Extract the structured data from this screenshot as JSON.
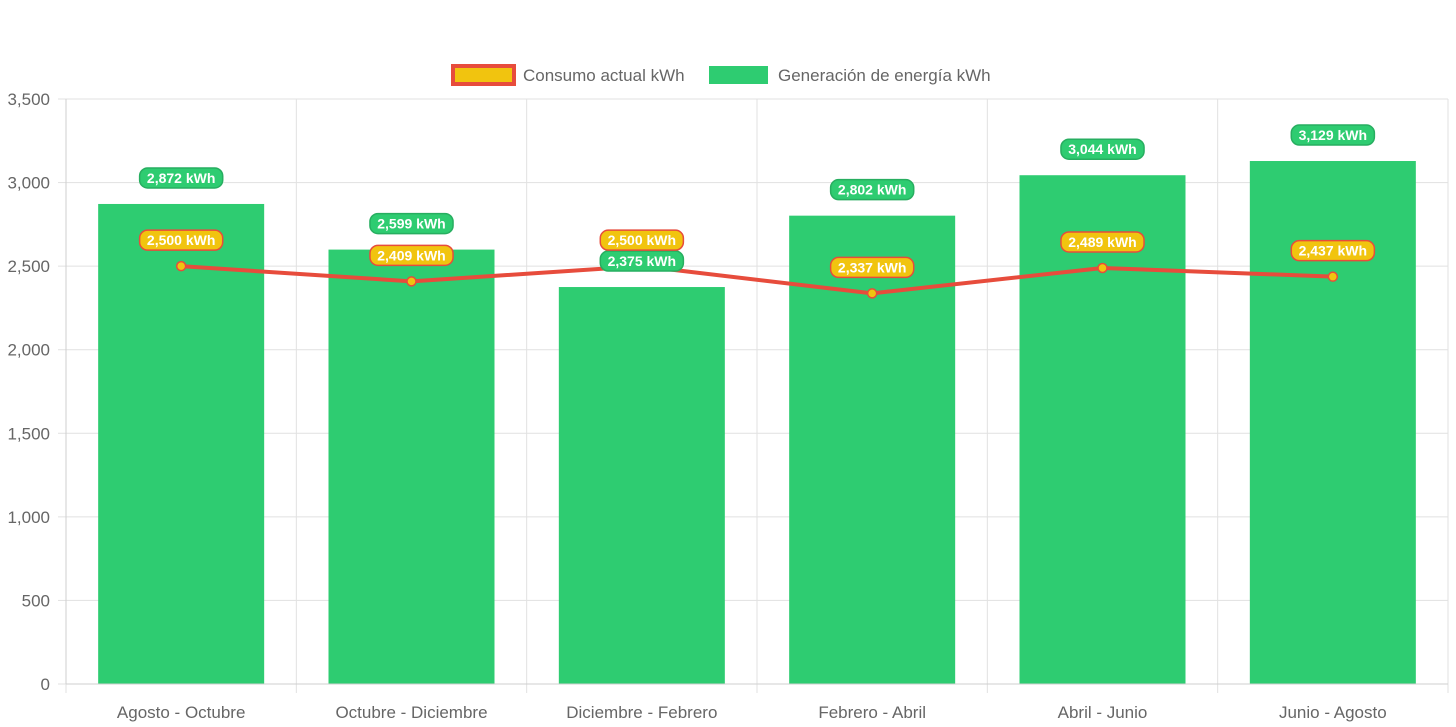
{
  "chart_data": {
    "type": "bar",
    "categories": [
      "Agosto - Octubre",
      "Octubre - Diciembre",
      "Diciembre - Febrero",
      "Febrero - Abril",
      "Abril - Junio",
      "Junio - Agosto"
    ],
    "series": [
      {
        "name": "Consumo actual kWh",
        "type": "line",
        "values": [
          2500,
          2409,
          2500,
          2337,
          2489,
          2437
        ],
        "labels": [
          "2,500 kWh",
          "2,409 kWh",
          "2,500 kWh",
          "2,337 kWh",
          "2,489 kWh",
          "2,437 kWh"
        ],
        "line_color": "#e74c3c",
        "fill_color": "#f1c40f"
      },
      {
        "name": "Generación de energía kWh",
        "type": "bar",
        "values": [
          2872,
          2599,
          2375,
          2802,
          3044,
          3129
        ],
        "labels": [
          "2,872 kWh",
          "2,599 kWh",
          "2,375 kWh",
          "2,802 kWh",
          "3,044 kWh",
          "3,129 kWh"
        ],
        "color": "#2ecc71",
        "border_color": "#27ae60"
      }
    ],
    "title": "",
    "xlabel": "",
    "ylabel": "",
    "ylim": [
      0,
      3500
    ],
    "y_ticks": [
      "0",
      "500",
      "1,000",
      "1,500",
      "2,000",
      "2,500",
      "3,000",
      "3,500"
    ],
    "grid": true,
    "legend_position": "top"
  }
}
